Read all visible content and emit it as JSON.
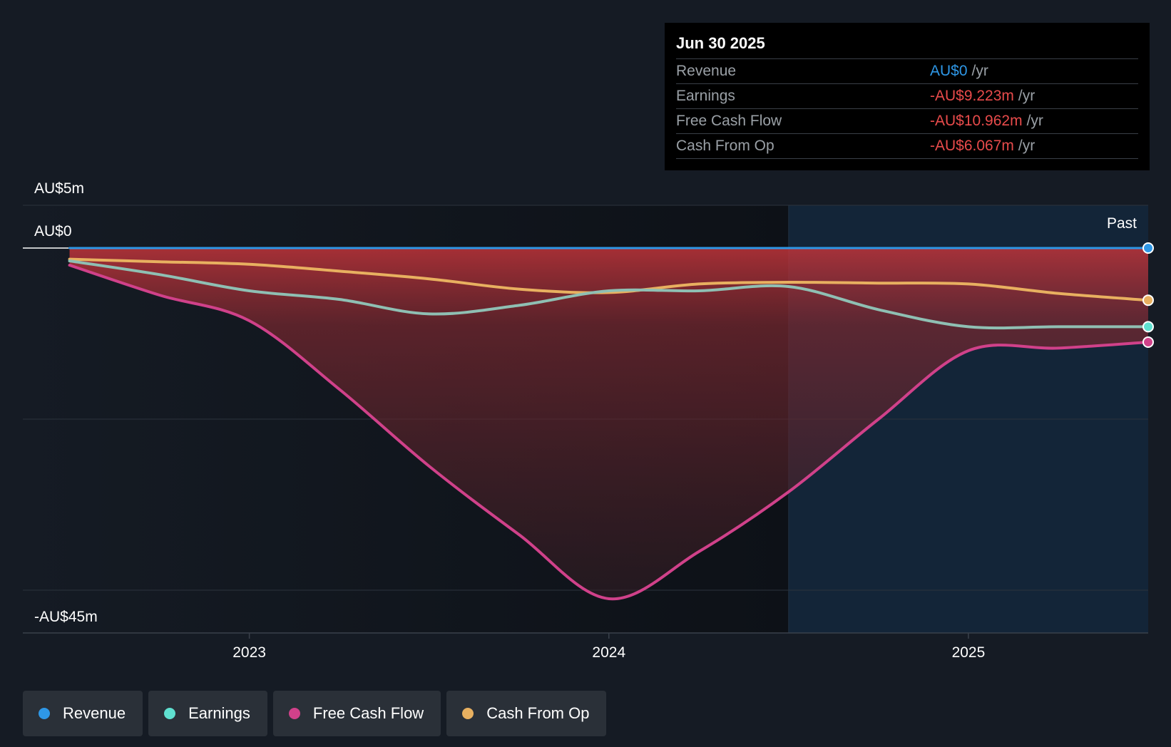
{
  "tooltip": {
    "date": "Jun 30 2025",
    "rows": [
      {
        "label": "Revenue",
        "value": "AU$0",
        "unit": "/yr"
      },
      {
        "label": "Earnings",
        "value": "-AU$9.223m",
        "unit": "/yr"
      },
      {
        "label": "Free Cash Flow",
        "value": "-AU$10.962m",
        "unit": "/yr"
      },
      {
        "label": "Cash From Op",
        "value": "-AU$6.067m",
        "unit": "/yr"
      }
    ]
  },
  "legend": [
    {
      "label": "Revenue",
      "color": "#2e97e6"
    },
    {
      "label": "Earnings",
      "color": "#5fe0d0"
    },
    {
      "label": "Free Cash Flow",
      "color": "#d0418a"
    },
    {
      "label": "Cash From Op",
      "color": "#e8b060"
    }
  ],
  "chart_data": {
    "type": "line",
    "ylabel_top": "AU$5m",
    "ylabel_zero": "AU$0",
    "ylabel_bottom": "-AU$45m",
    "ylim": [
      -45,
      5
    ],
    "xlim": [
      2022.37,
      2025.5
    ],
    "xticks": [
      {
        "value": 2023,
        "label": "2023"
      },
      {
        "value": 2024,
        "label": "2024"
      },
      {
        "value": 2025,
        "label": "2025"
      }
    ],
    "past_label": "Past",
    "past_start": 2024.5,
    "series": [
      {
        "name": "Revenue",
        "color": "#2e97e6",
        "x": [
          2022.5,
          2023.0,
          2023.5,
          2024.0,
          2024.5,
          2025.0,
          2025.5
        ],
        "values": [
          0,
          0,
          0,
          0,
          0,
          0,
          0
        ]
      },
      {
        "name": "Earnings",
        "color": "#8fbfb3",
        "end_color": "#5fe0d0",
        "x": [
          2022.5,
          2022.75,
          2023.0,
          2023.25,
          2023.5,
          2023.75,
          2024.0,
          2024.25,
          2024.5,
          2024.75,
          2025.0,
          2025.25,
          2025.5
        ],
        "values": [
          -1.5,
          -3.1,
          -5.0,
          -6.0,
          -7.7,
          -6.7,
          -5.0,
          -5.0,
          -4.5,
          -7.2,
          -9.2,
          -9.2,
          -9.2
        ]
      },
      {
        "name": "Free Cash Flow",
        "color": "#d0418a",
        "x": [
          2022.5,
          2022.75,
          2023.0,
          2023.25,
          2023.5,
          2023.75,
          2024.0,
          2024.25,
          2024.5,
          2024.75,
          2025.0,
          2025.25,
          2025.5
        ],
        "values": [
          -2.0,
          -5.5,
          -8.5,
          -16.5,
          -25.5,
          -33.5,
          -41.0,
          -35.5,
          -28.5,
          -20.0,
          -12.0,
          -11.7,
          -11.0
        ]
      },
      {
        "name": "Cash From Op",
        "color": "#e8b060",
        "x": [
          2022.5,
          2022.75,
          2023.0,
          2023.25,
          2023.5,
          2023.75,
          2024.0,
          2024.25,
          2024.5,
          2024.75,
          2025.0,
          2025.25,
          2025.5
        ],
        "values": [
          -1.3,
          -1.6,
          -1.9,
          -2.7,
          -3.6,
          -4.8,
          -5.2,
          -4.2,
          -4.0,
          -4.1,
          -4.2,
          -5.3,
          -6.1
        ]
      }
    ]
  }
}
